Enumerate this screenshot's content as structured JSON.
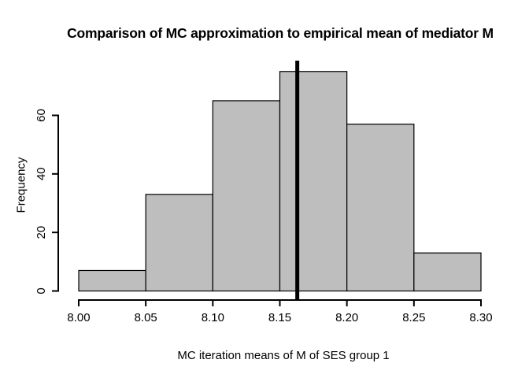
{
  "chart_data": {
    "type": "bar",
    "subtype": "histogram",
    "title": "Comparison of MC approximation to empirical mean of mediator M",
    "xlabel": "MC iteration means of M of SES group 1",
    "ylabel": "Frequency",
    "bin_edges": [
      8.0,
      8.05,
      8.1,
      8.15,
      8.2,
      8.25,
      8.3
    ],
    "counts": [
      7,
      33,
      65,
      75,
      57,
      13
    ],
    "x_tick_labels": [
      "8.00",
      "8.05",
      "8.10",
      "8.15",
      "8.20",
      "8.25",
      "8.30"
    ],
    "x_tick_values": [
      8.0,
      8.05,
      8.1,
      8.15,
      8.2,
      8.25,
      8.3
    ],
    "y_tick_labels": [
      "0",
      "20",
      "40",
      "60"
    ],
    "y_tick_values": [
      0,
      20,
      40,
      60
    ],
    "xlim": [
      8.0,
      8.3
    ],
    "ylim": [
      0,
      75
    ],
    "vline_x": 8.163,
    "grid": false,
    "legend": null,
    "colors": {
      "bar_fill": "#BEBEBE",
      "bar_border": "#000000",
      "axis": "#000000",
      "vline": "#000000",
      "background": "#FFFFFF",
      "text": "#000000"
    }
  }
}
